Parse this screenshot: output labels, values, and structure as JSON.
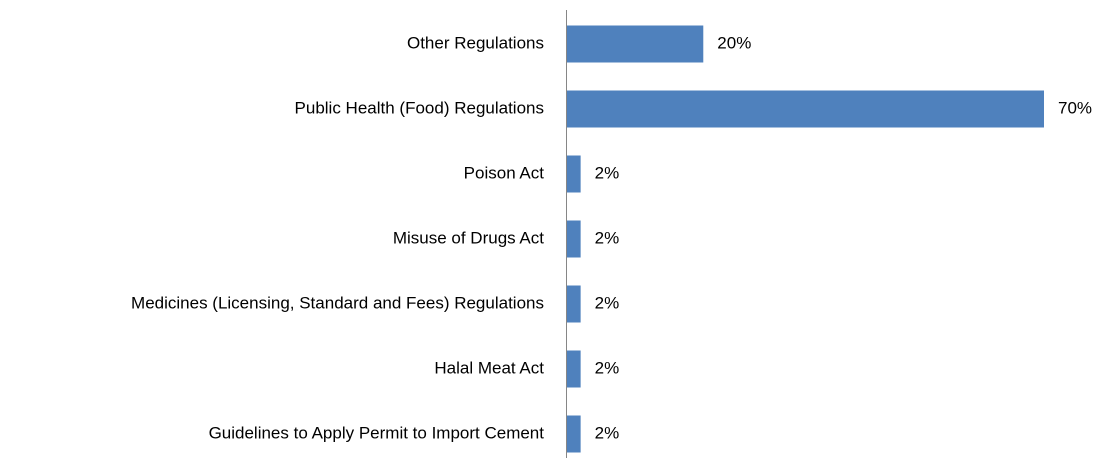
{
  "chart_data": {
    "type": "bar",
    "orientation": "horizontal",
    "categories": [
      "Other Regulations",
      "Public Health (Food) Regulations",
      "Poison Act",
      "Misuse of Drugs Act",
      "Medicines (Licensing, Standard and  Fees) Regulations",
      "Halal Meat Act",
      "Guidelines to Apply Permit to Import Cement"
    ],
    "values": [
      20,
      70,
      2,
      2,
      2,
      2,
      2
    ],
    "value_labels": [
      "20%",
      "70%",
      "2%",
      "2%",
      "2%",
      "2%",
      "2%"
    ],
    "color": "#4f81bd"
  }
}
